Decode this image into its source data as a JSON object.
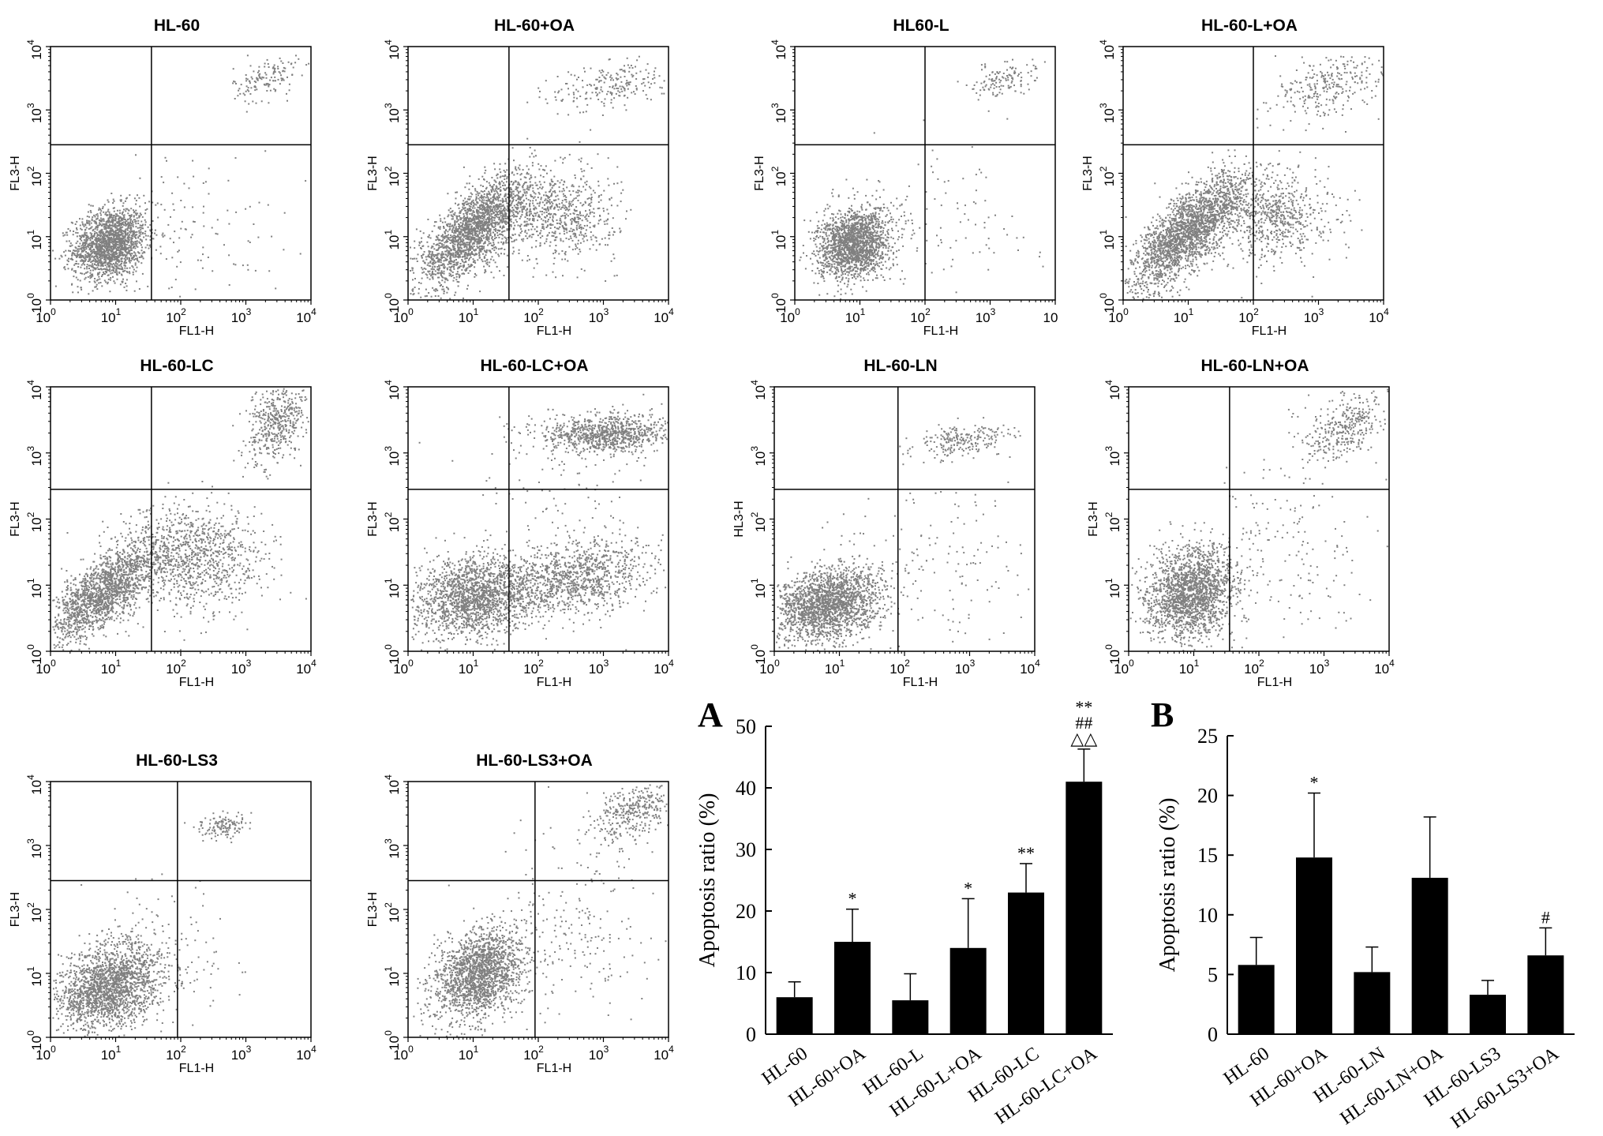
{
  "flow_panels": [
    {
      "title": "HL-60",
      "xlabel": "FL1-H",
      "ylabel": "FL3-H",
      "xticks": [
        "0",
        "1",
        "2",
        "3",
        "4"
      ],
      "yticks": [
        "0",
        "1",
        "2",
        "3",
        "4"
      ],
      "gate": {
        "x": 1.55,
        "y": 2.45
      }
    },
    {
      "title": "HL-60+OA",
      "xlabel": "FL1-H",
      "ylabel": "FL3-H",
      "xticks": [
        "0",
        "1",
        "2",
        "3",
        "4"
      ],
      "yticks": [
        "0",
        "1",
        "2",
        "3",
        "4"
      ],
      "gate": {
        "x": 1.55,
        "y": 2.45
      }
    },
    {
      "title": "HL60-L",
      "xlabel": "FL1-H",
      "ylabel": "FL3-H",
      "xticks": [
        "0",
        "1",
        "2",
        "3",
        ""
      ],
      "yticks": [
        "0",
        "1",
        "2",
        "3",
        "4"
      ],
      "gate": {
        "x": 2.0,
        "y": 2.45
      }
    },
    {
      "title": "HL-60-L+OA",
      "xlabel": "FL1-H",
      "ylabel": "FL3-H",
      "xticks": [
        "0",
        "1",
        "2",
        "3",
        "4"
      ],
      "yticks": [
        "0",
        "1",
        "2",
        "3",
        "4"
      ],
      "gate": {
        "x": 2.0,
        "y": 2.45
      }
    },
    {
      "title": "HL-60-LC",
      "xlabel": "FL1-H",
      "ylabel": "FL3-H",
      "xticks": [
        "0",
        "1",
        "2",
        "3",
        "4"
      ],
      "yticks": [
        "0",
        "1",
        "2",
        "3",
        "4"
      ],
      "gate": {
        "x": 1.55,
        "y": 2.45
      }
    },
    {
      "title": "HL-60-LC+OA",
      "xlabel": "FL1-H",
      "ylabel": "FL3-H",
      "xticks": [
        "0",
        "1",
        "2",
        "3",
        "4"
      ],
      "yticks": [
        "0",
        "1",
        "2",
        "3",
        "4"
      ],
      "gate": {
        "x": 1.55,
        "y": 2.45
      }
    },
    {
      "title": "HL-60-LN",
      "xlabel": "FL1-H",
      "ylabel": "HL3-H",
      "xticks": [
        "0",
        "1",
        "2",
        "3",
        "4"
      ],
      "yticks": [
        "0",
        "1",
        "2",
        "3",
        "4"
      ],
      "gate": {
        "x": 1.9,
        "y": 2.45
      }
    },
    {
      "title": "HL-60-LN+OA",
      "xlabel": "FL1-H",
      "ylabel": "FL3-H",
      "xticks": [
        "0",
        "1",
        "2",
        "3",
        "4"
      ],
      "yticks": [
        "0",
        "1",
        "2",
        "3",
        "4"
      ],
      "gate": {
        "x": 1.55,
        "y": 2.45
      }
    },
    {
      "title": "HL-60-LS3",
      "xlabel": "FL1-H",
      "ylabel": "FL3-H",
      "xticks": [
        "0",
        "1",
        "2",
        "3",
        "4"
      ],
      "yticks": [
        "0",
        "1",
        "2",
        "3",
        "4"
      ],
      "gate": {
        "x": 1.95,
        "y": 2.45
      }
    },
    {
      "title": "HL-60-LS3+OA",
      "xlabel": "FL1-H",
      "ylabel": "FL3-H",
      "xticks": [
        "0",
        "1",
        "2",
        "3",
        "4"
      ],
      "yticks": [
        "0",
        "1",
        "2",
        "3",
        "4"
      ],
      "gate": {
        "x": 1.95,
        "y": 2.45
      }
    }
  ],
  "dot_color": "#808080",
  "bar_color": "#000000",
  "chart_data": [
    {
      "type": "bar",
      "panel_label": "A",
      "categories": [
        "HL-60",
        "HL-60+OA",
        "HL-60-L",
        "HL-60-L+OA",
        "HL-60-LC",
        "HL-60-LC+OA"
      ],
      "values": [
        6,
        15,
        5.5,
        14,
        23,
        41
      ],
      "errors": [
        2.5,
        5.3,
        4.3,
        8,
        4.7,
        5.3
      ],
      "annotations": [
        [
          "",
          "",
          ""
        ],
        [
          "*",
          "",
          ""
        ],
        [
          "",
          "",
          ""
        ],
        [
          "*",
          "",
          ""
        ],
        [
          "**",
          "",
          ""
        ],
        [
          "**",
          "##",
          "△△"
        ]
      ],
      "ylabel": "Apoptosis ratio (%)",
      "ylim": [
        0,
        50
      ],
      "yticks": [
        "0",
        "10",
        "20",
        "30",
        "40",
        "50"
      ]
    },
    {
      "type": "bar",
      "panel_label": "B",
      "categories": [
        "HL-60",
        "HL-60+OA",
        "HL-60-LN",
        "HL-60-LN+OA",
        "HL-60-LS3",
        "HL-60-LS3+OA"
      ],
      "values": [
        5.8,
        14.8,
        5.2,
        13.1,
        3.3,
        6.6
      ],
      "errors": [
        2.3,
        5.4,
        2.1,
        5.1,
        1.2,
        2.3
      ],
      "annotations": [
        [
          "",
          "",
          ""
        ],
        [
          "*",
          "",
          ""
        ],
        [
          "",
          "",
          ""
        ],
        [
          "",
          "",
          ""
        ],
        [
          "",
          "",
          ""
        ],
        [
          "#",
          "",
          ""
        ]
      ],
      "ylabel": "Apoptosis ratio (%)",
      "ylim": [
        0,
        25
      ],
      "yticks": [
        "0",
        "5",
        "10",
        "15",
        "20",
        "25"
      ]
    }
  ]
}
